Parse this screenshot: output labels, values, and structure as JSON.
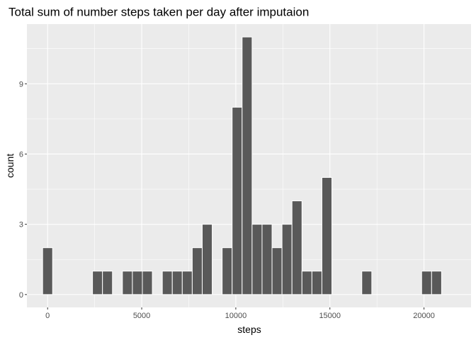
{
  "chart_data": {
    "type": "bar",
    "subtype": "histogram",
    "title": "Total sum of number steps taken per day after imputaion",
    "xlabel": "steps",
    "ylabel": "count",
    "bin_width": 530,
    "xlim": [
      -1100,
      22500
    ],
    "ylim": [
      -0.55,
      11.55
    ],
    "x_ticks": [
      {
        "value": 0,
        "label": "0"
      },
      {
        "value": 5000,
        "label": "5000"
      },
      {
        "value": 10000,
        "label": "10000"
      },
      {
        "value": 15000,
        "label": "15000"
      },
      {
        "value": 20000,
        "label": "20000"
      }
    ],
    "y_ticks": [
      {
        "value": 0,
        "label": "0"
      },
      {
        "value": 3,
        "label": "3"
      },
      {
        "value": 6,
        "label": "6"
      },
      {
        "value": 9,
        "label": "9"
      }
    ],
    "x_minor": [
      2500,
      7500,
      12500,
      17500
    ],
    "y_minor": [
      1.5,
      4.5,
      7.5,
      10.5
    ],
    "bins": [
      {
        "x": 0,
        "count": 2
      },
      {
        "x": 530,
        "count": 0
      },
      {
        "x": 1060,
        "count": 0
      },
      {
        "x": 1590,
        "count": 0
      },
      {
        "x": 2120,
        "count": 0
      },
      {
        "x": 2650,
        "count": 1
      },
      {
        "x": 3180,
        "count": 1
      },
      {
        "x": 3710,
        "count": 0
      },
      {
        "x": 4240,
        "count": 1
      },
      {
        "x": 4770,
        "count": 1
      },
      {
        "x": 5300,
        "count": 1
      },
      {
        "x": 5830,
        "count": 0
      },
      {
        "x": 6360,
        "count": 1
      },
      {
        "x": 6890,
        "count": 1
      },
      {
        "x": 7420,
        "count": 1
      },
      {
        "x": 7950,
        "count": 2
      },
      {
        "x": 8480,
        "count": 3
      },
      {
        "x": 9010,
        "count": 0
      },
      {
        "x": 9540,
        "count": 2
      },
      {
        "x": 10070,
        "count": 8
      },
      {
        "x": 10600,
        "count": 11
      },
      {
        "x": 11130,
        "count": 3
      },
      {
        "x": 11660,
        "count": 3
      },
      {
        "x": 12190,
        "count": 2
      },
      {
        "x": 12720,
        "count": 3
      },
      {
        "x": 13250,
        "count": 4
      },
      {
        "x": 13780,
        "count": 1
      },
      {
        "x": 14310,
        "count": 1
      },
      {
        "x": 14840,
        "count": 5
      },
      {
        "x": 15370,
        "count": 0
      },
      {
        "x": 15900,
        "count": 0
      },
      {
        "x": 16430,
        "count": 0
      },
      {
        "x": 16960,
        "count": 1
      },
      {
        "x": 17490,
        "count": 0
      },
      {
        "x": 18020,
        "count": 0
      },
      {
        "x": 18550,
        "count": 0
      },
      {
        "x": 19080,
        "count": 0
      },
      {
        "x": 19610,
        "count": 0
      },
      {
        "x": 20140,
        "count": 1
      },
      {
        "x": 20670,
        "count": 1
      }
    ],
    "grid": true,
    "legend": "none",
    "colors": {
      "panel": "#ebebeb",
      "grid": "#ffffff",
      "bar_fill": "#595959",
      "bar_outline": "#ffffff",
      "tick_text": "#4d4d4d",
      "tick_mark": "#333333",
      "title": "#000000"
    }
  }
}
